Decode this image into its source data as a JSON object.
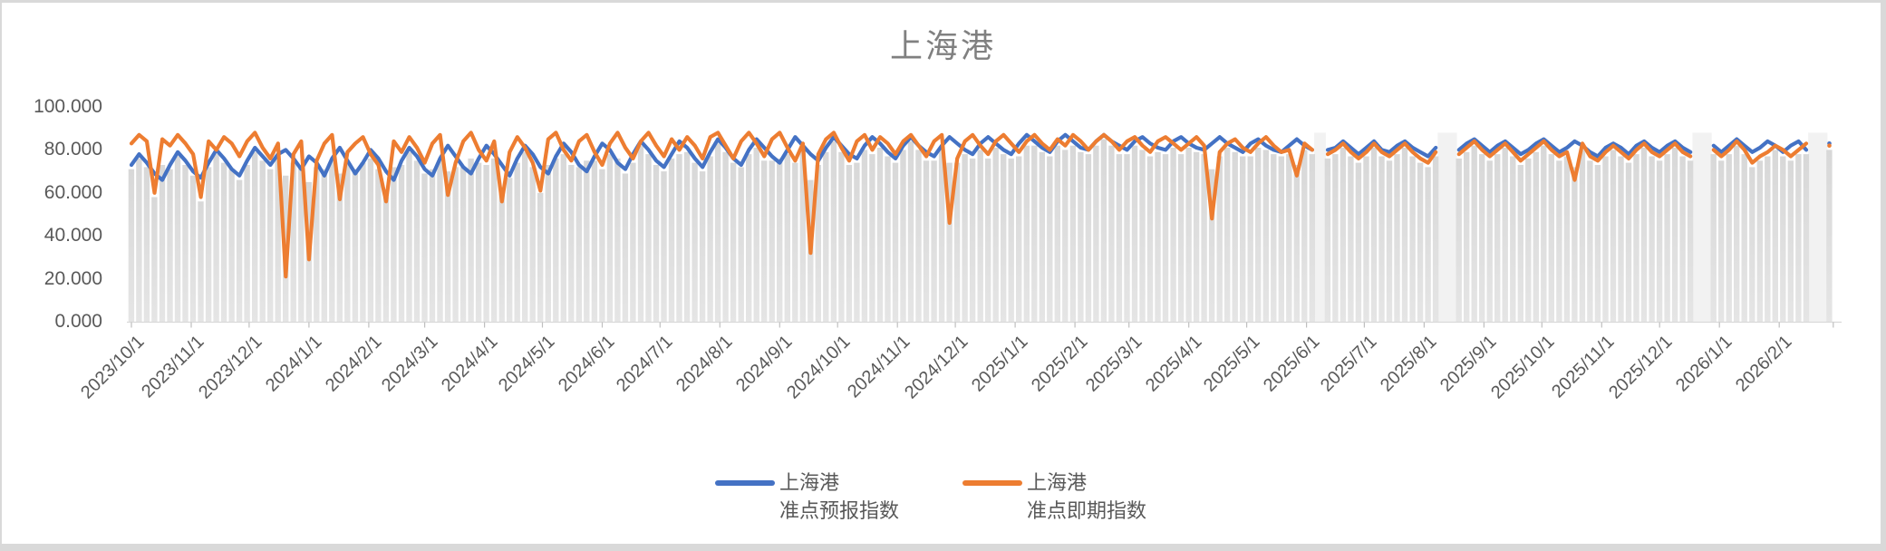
{
  "window": {
    "border_color": "#D9D9D9",
    "background": "#FFFFFF"
  },
  "chart_data": {
    "type": "line",
    "title": "上海港",
    "title_color": "#808080",
    "legend_position": "bottom",
    "grid": "off",
    "x_axis": {
      "label_rotation_deg": -45,
      "label_color": "#595959",
      "tick_labels": [
        "2023/10/1",
        "2023/11/1",
        "2023/12/1",
        "2024/1/1",
        "2024/2/1",
        "2024/3/1",
        "2024/4/1",
        "2024/5/1",
        "2024/6/1",
        "2024/7/1",
        "2024/8/1",
        "2024/9/1",
        "2024/10/1",
        "2024/11/1",
        "2024/12/1",
        "2025/1/1",
        "2025/2/1",
        "2025/3/1",
        "2025/4/1",
        "2025/5/1",
        "2025/6/1",
        "2025/7/1",
        "2025/8/1",
        "2025/9/1",
        "2025/10/1",
        "2025/11/1",
        "2025/12/1",
        "2026/1/1",
        "2026/2/1"
      ]
    },
    "y_axis": {
      "labels": [
        "0.000",
        "20.000",
        "40.000",
        "60.000",
        "80.000",
        "100.000"
      ],
      "min": 0,
      "max": 100,
      "label_color": "#595959"
    },
    "sample_start_date": "2023/10/1",
    "sample_step_days": 4,
    "series": [
      {
        "id": "forecast",
        "name": "上海港\n准点预报指数",
        "color": "#4472C4",
        "values": [
          73,
          78,
          74,
          69,
          66,
          73,
          79,
          75,
          70,
          67,
          74,
          80,
          76,
          71,
          68,
          75,
          81,
          77,
          73,
          78,
          80,
          76,
          71,
          77,
          74,
          68,
          76,
          81,
          75,
          69,
          74,
          80,
          76,
          70,
          66,
          75,
          81,
          77,
          71,
          68,
          76,
          82,
          77,
          72,
          69,
          76,
          82,
          78,
          73,
          68,
          76,
          82,
          78,
          72,
          69,
          77,
          83,
          79,
          73,
          70,
          77,
          83,
          80,
          74,
          71,
          78,
          84,
          80,
          75,
          72,
          78,
          84,
          81,
          76,
          72,
          79,
          85,
          81,
          76,
          73,
          80,
          85,
          81,
          77,
          74,
          80,
          86,
          82,
          78,
          75,
          81,
          86,
          82,
          78,
          76,
          82,
          86,
          83,
          79,
          76,
          82,
          86,
          82,
          79,
          77,
          82,
          86,
          83,
          80,
          78,
          83,
          86,
          83,
          80,
          78,
          83,
          87,
          84,
          81,
          79,
          84,
          87,
          84,
          81,
          80,
          84,
          87,
          84,
          82,
          80,
          84,
          86,
          83,
          81,
          80,
          84,
          86,
          83,
          81,
          80,
          83,
          86,
          83,
          81,
          79,
          83,
          85,
          82,
          80,
          79,
          82,
          85,
          82,
          80,
          null,
          80,
          81,
          84,
          81,
          78,
          81,
          84,
          80,
          79,
          82,
          84,
          81,
          79,
          77,
          81,
          null,
          null,
          80,
          83,
          85,
          82,
          79,
          82,
          84,
          81,
          78,
          80,
          83,
          85,
          82,
          79,
          81,
          84,
          82,
          79,
          77,
          81,
          83,
          81,
          78,
          82,
          84,
          81,
          79,
          82,
          84,
          81,
          79,
          null,
          null,
          82,
          79,
          82,
          85,
          82,
          79,
          81,
          84,
          82,
          79,
          82,
          84,
          80,
          null,
          null,
          83
        ]
      },
      {
        "id": "spot",
        "name": "上海港\n准点即期指数",
        "color": "#ED7D31",
        "values": [
          83,
          87,
          84,
          60,
          85,
          82,
          87,
          83,
          78,
          58,
          84,
          80,
          86,
          83,
          77,
          84,
          88,
          81,
          76,
          83,
          21,
          78,
          84,
          29,
          75,
          83,
          87,
          57,
          79,
          83,
          86,
          78,
          73,
          56,
          84,
          79,
          86,
          81,
          74,
          83,
          87,
          59,
          74,
          84,
          88,
          80,
          75,
          84,
          56,
          79,
          86,
          81,
          74,
          61,
          85,
          88,
          80,
          75,
          84,
          87,
          79,
          73,
          83,
          88,
          81,
          76,
          84,
          88,
          82,
          77,
          85,
          80,
          86,
          82,
          76,
          86,
          88,
          82,
          76,
          84,
          88,
          83,
          77,
          85,
          88,
          81,
          75,
          83,
          32,
          78,
          85,
          88,
          81,
          75,
          84,
          87,
          80,
          86,
          83,
          78,
          84,
          87,
          82,
          77,
          84,
          87,
          46,
          76,
          84,
          87,
          82,
          78,
          84,
          87,
          83,
          79,
          84,
          87,
          83,
          80,
          85,
          82,
          87,
          84,
          80,
          84,
          87,
          84,
          80,
          84,
          86,
          82,
          79,
          84,
          86,
          83,
          80,
          83,
          86,
          82,
          48,
          79,
          83,
          85,
          81,
          79,
          83,
          86,
          82,
          79,
          80,
          68,
          83,
          80,
          null,
          78,
          80,
          83,
          79,
          76,
          79,
          83,
          79,
          77,
          80,
          83,
          79,
          76,
          74,
          79,
          null,
          null,
          78,
          81,
          84,
          80,
          77,
          80,
          83,
          79,
          75,
          78,
          81,
          84,
          80,
          77,
          79,
          66,
          83,
          77,
          75,
          79,
          82,
          79,
          76,
          80,
          83,
          79,
          77,
          80,
          83,
          79,
          77,
          null,
          null,
          80,
          77,
          80,
          84,
          80,
          74,
          77,
          79,
          82,
          80,
          77,
          80,
          83,
          null,
          null,
          82
        ]
      }
    ],
    "colors": {
      "column": "#D8D8D8",
      "column_light": "#E5E5E5",
      "gap_band": "#F2F2F2",
      "axis_line": "#D9D9D9",
      "tick": "#BFBFBF"
    }
  }
}
